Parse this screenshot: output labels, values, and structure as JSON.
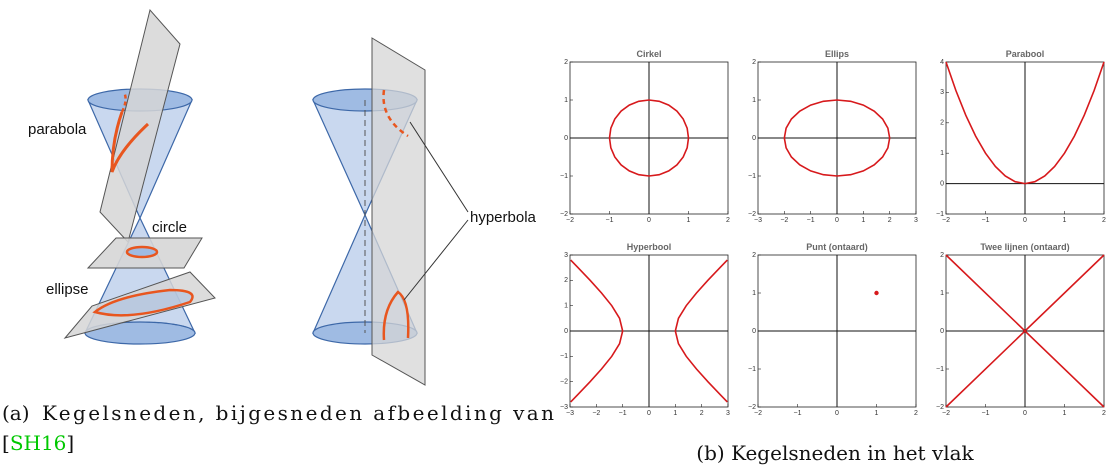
{
  "figure_a": {
    "labels": {
      "parabola": "parabola",
      "circle": "circle",
      "ellipse": "ellipse",
      "hyperbola": "hyperbola"
    },
    "caption": {
      "label": "(a)",
      "text": "Kegelsneden, bijgesneden afbeelding van",
      "ref_open": "[",
      "ref": "SH16",
      "ref_close": "]"
    }
  },
  "caption_b": "(b) Kegelsneden in het vlak",
  "chart_data": [
    {
      "type": "line",
      "title": "Cirkel",
      "xlim": [
        -2,
        2
      ],
      "ylim": [
        -2,
        2
      ],
      "xticks": [
        {
          "value": -2,
          "label": "−2"
        },
        {
          "value": -1,
          "label": "−1"
        },
        0,
        1,
        2
      ],
      "yticks": [
        {
          "value": -2,
          "label": "−2"
        },
        {
          "value": -1,
          "label": "−1"
        },
        0,
        1,
        2
      ],
      "series": [
        {
          "color": "#d7191c",
          "x": [
            1,
            0.966,
            0.866,
            0.707,
            0.5,
            0.259,
            0,
            -0.259,
            -0.5,
            -0.707,
            -0.866,
            -0.966,
            -1,
            -0.966,
            -0.866,
            -0.707,
            -0.5,
            -0.259,
            0,
            0.259,
            0.5,
            0.707,
            0.866,
            0.966,
            1
          ],
          "y": [
            0,
            0.259,
            0.5,
            0.707,
            0.866,
            0.966,
            1,
            0.966,
            0.866,
            0.707,
            0.5,
            0.259,
            0,
            -0.259,
            -0.5,
            -0.707,
            -0.866,
            -0.966,
            -1,
            -0.966,
            -0.866,
            -0.707,
            -0.5,
            -0.259,
            0
          ]
        }
      ]
    },
    {
      "type": "line",
      "title": "Ellips",
      "xlim": [
        -3,
        3
      ],
      "ylim": [
        -2,
        2
      ],
      "xticks": [
        {
          "value": -3,
          "label": "−3"
        },
        {
          "value": -2,
          "label": "−2"
        },
        {
          "value": -1,
          "label": "−1"
        },
        0,
        1,
        2,
        3
      ],
      "yticks": [
        {
          "value": -2,
          "label": "−2"
        },
        {
          "value": -1,
          "label": "−1"
        },
        0,
        1,
        2
      ],
      "series": [
        {
          "color": "#d7191c",
          "x": [
            2,
            1.932,
            1.732,
            1.414,
            1,
            0.518,
            0,
            -0.518,
            -1,
            -1.414,
            -1.732,
            -1.932,
            -2,
            -1.932,
            -1.732,
            -1.414,
            -1,
            -0.518,
            0,
            0.518,
            1,
            1.414,
            1.732,
            1.932,
            2
          ],
          "y": [
            0,
            0.259,
            0.5,
            0.707,
            0.866,
            0.966,
            1,
            0.966,
            0.866,
            0.707,
            0.5,
            0.259,
            0,
            -0.259,
            -0.5,
            -0.707,
            -0.866,
            -0.966,
            -1,
            -0.966,
            -0.866,
            -0.707,
            -0.5,
            -0.259,
            0
          ]
        }
      ]
    },
    {
      "type": "line",
      "title": "Parabool",
      "xlim": [
        -2,
        2
      ],
      "ylim": [
        -1,
        4
      ],
      "xticks": [
        {
          "value": -2,
          "label": "−2"
        },
        {
          "value": -1,
          "label": "−1"
        },
        0,
        1,
        2
      ],
      "yticks": [
        {
          "value": -1,
          "label": "−1"
        },
        0,
        1,
        2,
        3,
        4
      ],
      "series": [
        {
          "color": "#d7191c",
          "x": [
            -2,
            -1.75,
            -1.5,
            -1.25,
            -1,
            -0.75,
            -0.5,
            -0.25,
            0,
            0.25,
            0.5,
            0.75,
            1,
            1.25,
            1.5,
            1.75,
            2
          ],
          "y": [
            4,
            3.0625,
            2.25,
            1.5625,
            1,
            0.5625,
            0.25,
            0.0625,
            0,
            0.0625,
            0.25,
            0.5625,
            1,
            1.5625,
            2.25,
            3.0625,
            4
          ]
        }
      ]
    },
    {
      "type": "line",
      "title": "Hyperbool",
      "xlim": [
        -3,
        3
      ],
      "ylim": [
        -3,
        3
      ],
      "xticks": [
        {
          "value": -3,
          "label": "−3"
        },
        {
          "value": -2,
          "label": "−2"
        },
        {
          "value": -1,
          "label": "−1"
        },
        0,
        1,
        2,
        3
      ],
      "yticks": [
        {
          "value": -3,
          "label": "−3"
        },
        {
          "value": -2,
          "label": "−2"
        },
        {
          "value": -1,
          "label": "−1"
        },
        0,
        1,
        2,
        3
      ],
      "series": [
        {
          "color": "#d7191c",
          "x": [
            2.973,
            2.693,
            2.236,
            1.803,
            1.414,
            1.118,
            1,
            1.118,
            1.414,
            1.803,
            2.236,
            2.693,
            2.973,
            null,
            -2.973,
            -2.693,
            -2.236,
            -1.803,
            -1.414,
            -1.118,
            -1,
            -1.118,
            -1.414,
            -1.803,
            -2.236,
            -2.693,
            -2.973
          ],
          "y": [
            -2.8,
            -2.5,
            -2,
            -1.5,
            -1,
            -0.5,
            0,
            0.5,
            1,
            1.5,
            2,
            2.5,
            2.8,
            null,
            -2.8,
            -2.5,
            -2,
            -1.5,
            -1,
            -0.5,
            0,
            0.5,
            1,
            1.5,
            2,
            2.5,
            2.8
          ]
        }
      ]
    },
    {
      "type": "scatter",
      "title": "Punt (ontaard)",
      "xlim": [
        -2,
        2
      ],
      "ylim": [
        -2,
        2
      ],
      "xticks": [
        {
          "value": -2,
          "label": "−2"
        },
        {
          "value": -1,
          "label": "−1"
        },
        0,
        1,
        2
      ],
      "yticks": [
        {
          "value": -2,
          "label": "−2"
        },
        {
          "value": -1,
          "label": "−1"
        },
        0,
        1,
        2
      ],
      "series": [
        {
          "color": "#d7191c",
          "x": [
            1
          ],
          "y": [
            1
          ]
        }
      ]
    },
    {
      "type": "line",
      "title": "Twee lijnen (ontaard)",
      "xlim": [
        -2,
        2
      ],
      "ylim": [
        -2,
        2
      ],
      "xticks": [
        {
          "value": -2,
          "label": "−2"
        },
        {
          "value": -1,
          "label": "−1"
        },
        0,
        1,
        2
      ],
      "yticks": [
        {
          "value": -2,
          "label": "−2"
        },
        {
          "value": -1,
          "label": "−1"
        },
        0,
        1,
        2
      ],
      "series": [
        {
          "color": "#d7191c",
          "x": [
            -2,
            2,
            null,
            -2,
            2
          ],
          "y": [
            -2,
            2,
            null,
            2,
            -2
          ]
        }
      ]
    }
  ]
}
